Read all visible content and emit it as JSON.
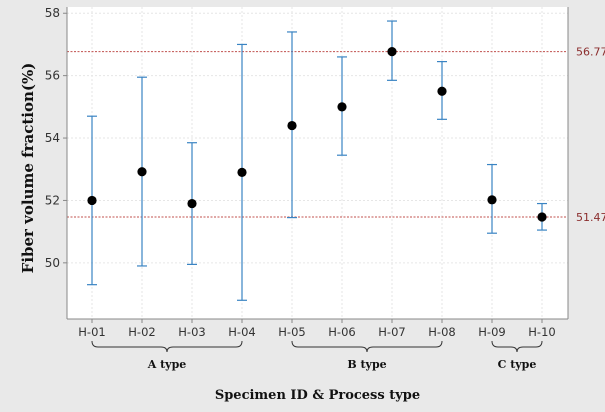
{
  "chart_data": {
    "type": "scatter",
    "subtype": "interval-plot",
    "title": "",
    "xlabel": "Specimen ID & Process type",
    "ylabel": "Fiber volume fraction(%)",
    "ylim": [
      48.2,
      58.2
    ],
    "yticks": [
      50,
      52,
      54,
      56,
      58
    ],
    "grid": true,
    "categories": [
      "H-01",
      "H-02",
      "H-03",
      "H-04",
      "H-05",
      "H-06",
      "H-07",
      "H-08",
      "H-09",
      "H-10"
    ],
    "series": [
      {
        "values": [
          52.0,
          52.92,
          51.9,
          52.9,
          54.4,
          55.0,
          56.77,
          55.5,
          52.02,
          51.47
        ],
        "lower": [
          49.3,
          49.9,
          49.95,
          48.8,
          51.45,
          53.45,
          55.85,
          54.6,
          50.95,
          51.05
        ],
        "upper": [
          54.7,
          55.95,
          53.85,
          57.0,
          57.4,
          56.6,
          57.75,
          56.45,
          53.15,
          51.9
        ],
        "marker_color": "#000000",
        "errorbar_color": "#3a84c3"
      }
    ],
    "reference_lines": [
      {
        "value": 56.77,
        "label": "56.77",
        "color": "#c0504d"
      },
      {
        "value": 51.47,
        "label": "51.47",
        "color": "#c0504d"
      }
    ],
    "groups": [
      {
        "label": "A type",
        "from": "H-01",
        "to": "H-04"
      },
      {
        "label": "B type",
        "from": "H-05",
        "to": "H-08"
      },
      {
        "label": "C type",
        "from": "H-09",
        "to": "H-10"
      }
    ]
  },
  "colors": {
    "figure_background": "#e9e9e9",
    "plot_background": "#ffffff",
    "grid": "#e6e6e6",
    "axis": "#888888",
    "reference_label": "#8b2d2d",
    "bracket": "#333333"
  }
}
